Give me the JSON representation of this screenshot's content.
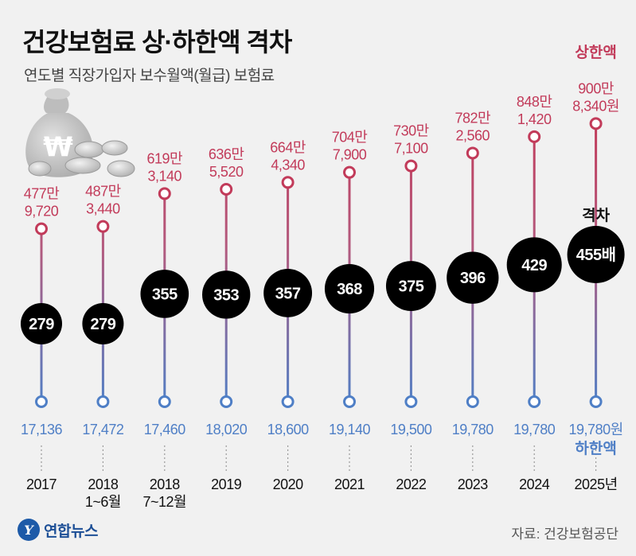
{
  "header": {
    "title": "건강보험료 상·하한액 격차",
    "subtitle": "연도별 직장가입자 보수월액(월급) 보험료"
  },
  "labels": {
    "upper": "상한액",
    "lower": "하한액",
    "gap": "격차"
  },
  "footer": {
    "source": "자료: 건강보험공단",
    "logo_text": "연합뉴스",
    "logo_mark": "Y"
  },
  "colors": {
    "upper": "#c23b5a",
    "lower": "#4f7fc6",
    "bubble": "#000000",
    "background": "#f1f1f1"
  },
  "chart_data": {
    "type": "line",
    "title": "건강보험료 상·하한액 격차",
    "subtitle": "연도별 직장가입자 보수월액(월급) 보험료",
    "unit": "원",
    "categories": [
      [
        "2017"
      ],
      [
        "2018",
        "1~6월"
      ],
      [
        "2018",
        "7~12월"
      ],
      [
        "2019"
      ],
      [
        "2020"
      ],
      [
        "2021"
      ],
      [
        "2022"
      ],
      [
        "2023"
      ],
      [
        "2024"
      ],
      [
        "2025년"
      ]
    ],
    "series": [
      {
        "name": "상한액",
        "values": [
          4779720,
          4873440,
          6193140,
          6365520,
          6644340,
          7047900,
          7307100,
          7822560,
          8481420,
          9008340
        ],
        "labels": [
          [
            "477만",
            "9,720"
          ],
          [
            "487만",
            "3,440"
          ],
          [
            "619만",
            "3,140"
          ],
          [
            "636만",
            "5,520"
          ],
          [
            "664만",
            "4,340"
          ],
          [
            "704만",
            "7,900"
          ],
          [
            "730만",
            "7,100"
          ],
          [
            "782만",
            "2,560"
          ],
          [
            "848만",
            "1,420"
          ],
          [
            "900만",
            "8,340원"
          ]
        ]
      },
      {
        "name": "하한액",
        "values": [
          17136,
          17472,
          17460,
          18020,
          18600,
          19140,
          19500,
          19780,
          19780,
          19780
        ],
        "labels": [
          "17,136",
          "17,472",
          "17,460",
          "18,020",
          "18,600",
          "19,140",
          "19,500",
          "19,780",
          "19,780",
          "19,780원"
        ]
      },
      {
        "name": "격차",
        "values": [
          279,
          279,
          355,
          353,
          357,
          368,
          375,
          396,
          429,
          455
        ],
        "labels": [
          "279",
          "279",
          "355",
          "353",
          "357",
          "368",
          "375",
          "396",
          "429",
          "455배"
        ]
      }
    ],
    "ylim": [
      4000000,
      9500000
    ]
  }
}
